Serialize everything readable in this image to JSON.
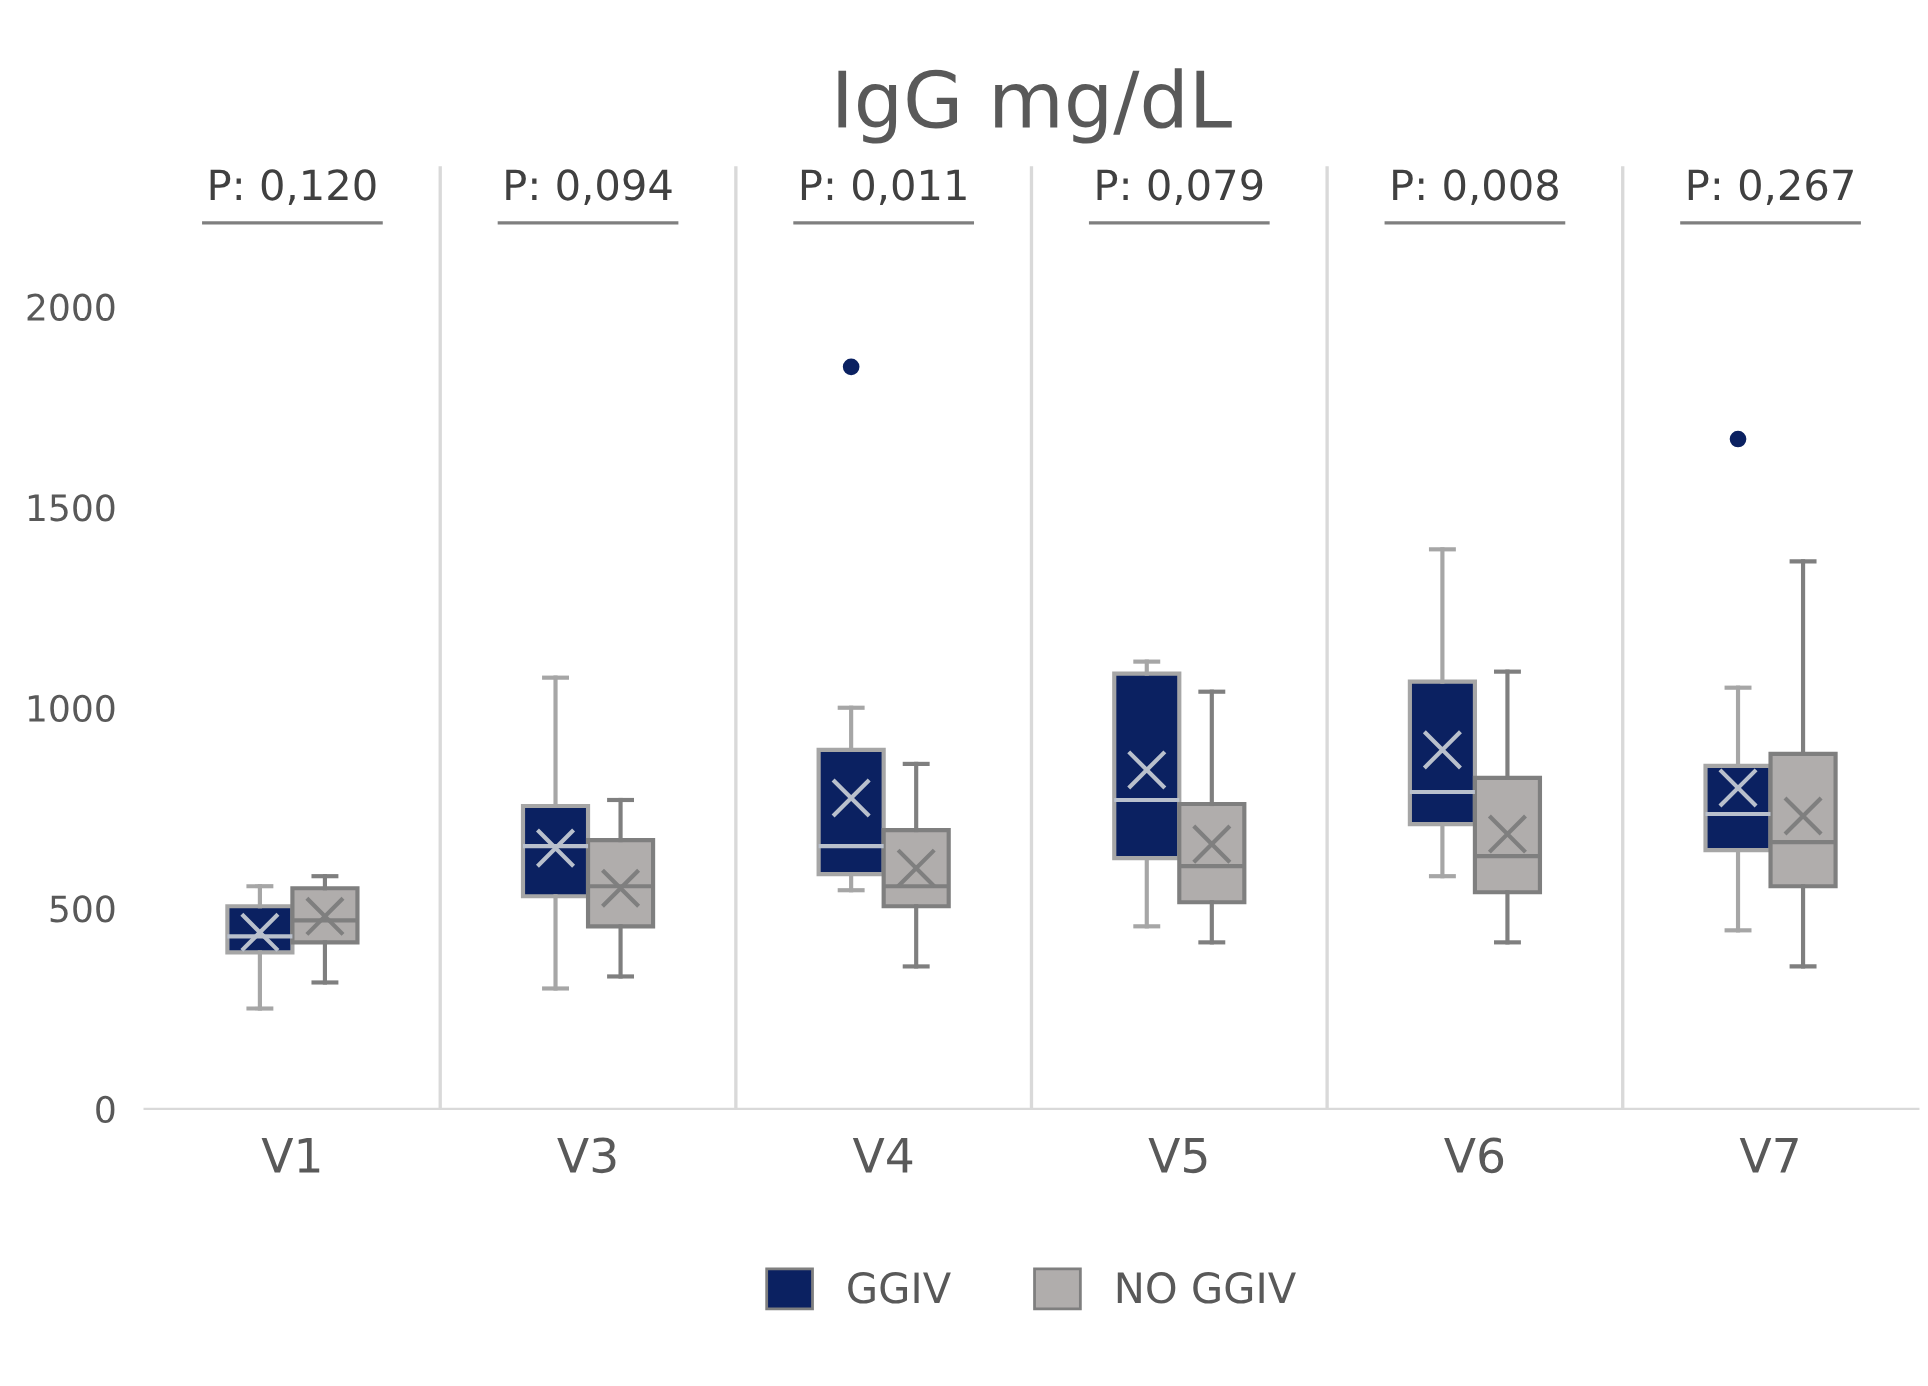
{
  "chart_data": {
    "type": "box",
    "title": "IgG mg/dL",
    "categories": [
      "V1",
      "V3",
      "V4",
      "V5",
      "V6",
      "V7"
    ],
    "ylim": [
      0,
      2350
    ],
    "yticks": [
      0,
      500,
      1000,
      1500,
      2000
    ],
    "grid": "x",
    "legend": "bottom",
    "annotations": [
      "P: 0,120",
      "P: 0,094",
      "P: 0,011",
      "P: 0,079",
      "P: 0,008",
      "P: 0,267"
    ],
    "series": [
      {
        "name": "GGIV",
        "color": "#0b2161",
        "boxes": [
          {
            "low": 250,
            "q1": 390,
            "median": 430,
            "q3": 505,
            "high": 555,
            "mean": 440
          },
          {
            "low": 300,
            "q1": 530,
            "median": 655,
            "q3": 755,
            "high": 1075,
            "mean": 650
          },
          {
            "low": 545,
            "q1": 585,
            "median": 655,
            "q3": 895,
            "high": 1000,
            "mean": 775,
            "outliers": [
              1850
            ]
          },
          {
            "low": 455,
            "q1": 625,
            "median": 770,
            "q3": 1085,
            "high": 1115,
            "mean": 845
          },
          {
            "low": 580,
            "q1": 710,
            "median": 790,
            "q3": 1065,
            "high": 1395,
            "mean": 895
          },
          {
            "low": 445,
            "q1": 645,
            "median": 735,
            "q3": 855,
            "high": 1050,
            "mean": 800,
            "outliers": [
              1670
            ]
          }
        ]
      },
      {
        "name": "NO GGIV",
        "color": "#b0adac",
        "boxes": [
          {
            "low": 315,
            "q1": 415,
            "median": 470,
            "q3": 550,
            "high": 580,
            "mean": 480
          },
          {
            "low": 330,
            "q1": 455,
            "median": 555,
            "q3": 670,
            "high": 770,
            "mean": 550
          },
          {
            "low": 355,
            "q1": 505,
            "median": 555,
            "q3": 695,
            "high": 860,
            "mean": 600
          },
          {
            "low": 415,
            "q1": 515,
            "median": 605,
            "q3": 760,
            "high": 1040,
            "mean": 660
          },
          {
            "low": 415,
            "q1": 540,
            "median": 630,
            "q3": 825,
            "high": 1090,
            "mean": 685
          },
          {
            "low": 355,
            "q1": 555,
            "median": 665,
            "q3": 885,
            "high": 1365,
            "mean": 730
          }
        ]
      }
    ]
  }
}
